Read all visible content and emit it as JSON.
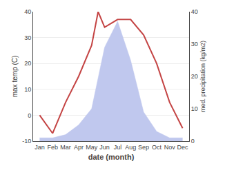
{
  "chart_data": {
    "type": "line",
    "xlabel": "date (month)",
    "ylabel": "max temp (C)",
    "y2label": "med. precipitation (kg/m2)",
    "xlim": [
      0.5,
      12.5
    ],
    "xticks": [
      {
        "value": 1,
        "label": "Jan"
      },
      {
        "value": 2,
        "label": "Feb"
      },
      {
        "value": 3,
        "label": "Mar"
      },
      {
        "value": 4,
        "label": "Apr"
      },
      {
        "value": 5,
        "label": "May"
      },
      {
        "value": 6,
        "label": "Jun"
      },
      {
        "value": 7,
        "label": "Jul"
      },
      {
        "value": 8,
        "label": "Aug"
      },
      {
        "value": 9,
        "label": "Sep"
      },
      {
        "value": 10,
        "label": "Oct"
      },
      {
        "value": 11,
        "label": "Nov"
      },
      {
        "value": 12,
        "label": "Dec"
      }
    ],
    "ylim": [
      -10,
      40
    ],
    "yticks": [
      -10,
      0,
      10,
      20,
      30,
      40
    ],
    "y2lim": [
      0,
      40
    ],
    "y2ticks": [
      0,
      10,
      20,
      30,
      40
    ],
    "grid": "y",
    "series": [
      {
        "type": "area",
        "color": "#c0c8ee",
        "axis": "y2",
        "x": [
          1,
          2,
          3,
          4,
          5,
          6,
          7,
          8,
          9,
          10,
          11,
          12
        ],
        "values": [
          1,
          1,
          2,
          5,
          10,
          29,
          37,
          25,
          9,
          3,
          1,
          1
        ]
      },
      {
        "type": "line",
        "color": "#c44444",
        "x": [
          1,
          2,
          3,
          4,
          5,
          5.5,
          6,
          7,
          8,
          9,
          10,
          11,
          12
        ],
        "values": [
          0,
          -7,
          5,
          15,
          27,
          40,
          34,
          37,
          37,
          31,
          20,
          5,
          -5
        ]
      }
    ]
  }
}
